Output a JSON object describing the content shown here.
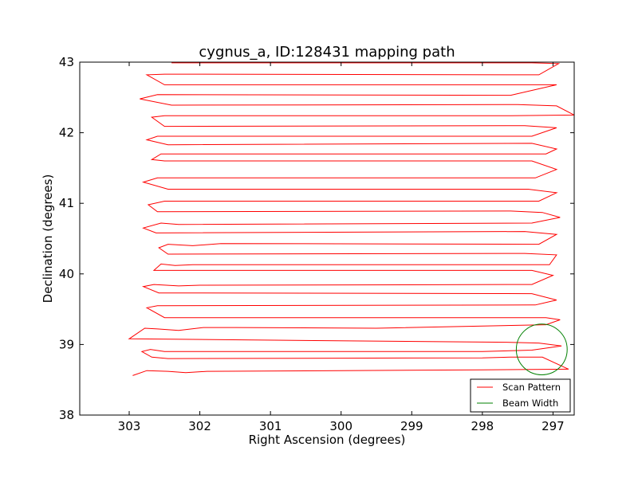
{
  "chart_data": {
    "type": "line",
    "title": "cygnus_a, ID:128431 mapping path",
    "xlabel": "Right Ascension (degrees)",
    "ylabel": "Declination (degrees)",
    "xlim": [
      303.7,
      296.7
    ],
    "ylim": [
      38.0,
      43.0
    ],
    "xticks": [
      303,
      302,
      301,
      300,
      299,
      298,
      297
    ],
    "yticks": [
      38,
      39,
      40,
      41,
      42,
      43
    ],
    "grid": false,
    "legend_position": "lower-right",
    "series": [
      {
        "name": "Scan Pattern",
        "color": "#ff0000",
        "kind": "path",
        "points": [
          [
            302.95,
            38.56
          ],
          [
            302.75,
            38.63
          ],
          [
            302.45,
            38.62
          ],
          [
            302.2,
            38.6
          ],
          [
            301.9,
            38.62
          ],
          [
            300.0,
            38.63
          ],
          [
            298.0,
            38.64
          ],
          [
            296.78,
            38.65
          ],
          [
            297.15,
            38.82
          ],
          [
            297.6,
            38.82
          ],
          [
            298.0,
            38.81
          ],
          [
            302.45,
            38.8
          ],
          [
            302.68,
            38.82
          ],
          [
            302.82,
            38.9
          ],
          [
            302.7,
            38.93
          ],
          [
            302.5,
            38.9
          ],
          [
            298.0,
            38.9
          ],
          [
            297.3,
            38.92
          ],
          [
            296.88,
            38.98
          ],
          [
            297.2,
            39.02
          ],
          [
            297.6,
            39.03
          ],
          [
            303.0,
            39.08
          ],
          [
            302.78,
            39.23
          ],
          [
            302.6,
            39.22
          ],
          [
            302.3,
            39.2
          ],
          [
            301.95,
            39.24
          ],
          [
            301.5,
            39.24
          ],
          [
            299.5,
            39.23
          ],
          [
            297.1,
            39.28
          ],
          [
            296.9,
            39.35
          ],
          [
            297.1,
            39.38
          ],
          [
            302.5,
            39.38
          ],
          [
            302.75,
            39.52
          ],
          [
            302.6,
            39.55
          ],
          [
            297.25,
            39.56
          ],
          [
            296.95,
            39.63
          ],
          [
            297.3,
            39.72
          ],
          [
            302.58,
            39.73
          ],
          [
            302.8,
            39.82
          ],
          [
            302.65,
            39.85
          ],
          [
            302.3,
            39.83
          ],
          [
            302.0,
            39.84
          ],
          [
            297.3,
            39.85
          ],
          [
            297.0,
            39.98
          ],
          [
            297.3,
            40.05
          ],
          [
            302.65,
            40.05
          ],
          [
            302.55,
            40.14
          ],
          [
            302.35,
            40.12
          ],
          [
            302.1,
            40.13
          ],
          [
            301.9,
            40.13
          ],
          [
            297.05,
            40.13
          ],
          [
            296.95,
            40.27
          ],
          [
            297.4,
            40.29
          ],
          [
            302.45,
            40.28
          ],
          [
            302.58,
            40.37
          ],
          [
            302.45,
            40.42
          ],
          [
            302.1,
            40.4
          ],
          [
            301.7,
            40.43
          ],
          [
            297.2,
            40.42
          ],
          [
            296.95,
            40.56
          ],
          [
            297.4,
            40.6
          ],
          [
            302.62,
            40.58
          ],
          [
            302.8,
            40.65
          ],
          [
            302.55,
            40.72
          ],
          [
            302.3,
            40.7
          ],
          [
            297.3,
            40.72
          ],
          [
            296.9,
            40.8
          ],
          [
            297.15,
            40.87
          ],
          [
            297.6,
            40.89
          ],
          [
            302.6,
            40.88
          ],
          [
            302.73,
            40.98
          ],
          [
            302.5,
            41.03
          ],
          [
            297.2,
            41.03
          ],
          [
            296.95,
            41.15
          ],
          [
            297.35,
            41.2
          ],
          [
            302.45,
            41.2
          ],
          [
            302.8,
            41.3
          ],
          [
            302.6,
            41.36
          ],
          [
            297.25,
            41.36
          ],
          [
            296.95,
            41.48
          ],
          [
            297.3,
            41.6
          ],
          [
            302.5,
            41.6
          ],
          [
            302.68,
            41.62
          ],
          [
            302.55,
            41.7
          ],
          [
            297.1,
            41.7
          ],
          [
            296.95,
            41.77
          ],
          [
            297.3,
            41.85
          ],
          [
            302.45,
            41.83
          ],
          [
            302.75,
            41.9
          ],
          [
            302.6,
            41.95
          ],
          [
            297.3,
            41.95
          ],
          [
            296.95,
            42.07
          ],
          [
            297.4,
            42.1
          ],
          [
            302.5,
            42.09
          ],
          [
            302.68,
            42.22
          ],
          [
            302.5,
            42.24
          ],
          [
            297.6,
            42.24
          ],
          [
            296.7,
            42.25
          ],
          [
            296.95,
            42.38
          ],
          [
            297.5,
            42.4
          ],
          [
            302.4,
            42.39
          ],
          [
            302.85,
            42.48
          ],
          [
            302.6,
            42.54
          ],
          [
            297.6,
            42.53
          ],
          [
            296.95,
            42.68
          ],
          [
            297.2,
            42.68
          ],
          [
            302.5,
            42.68
          ],
          [
            302.75,
            42.82
          ],
          [
            302.5,
            42.83
          ],
          [
            297.2,
            42.82
          ],
          [
            296.92,
            42.98
          ],
          [
            297.3,
            42.99
          ],
          [
            302.4,
            42.99
          ]
        ]
      },
      {
        "name": "Beam Width",
        "color": "#008000",
        "kind": "circle",
        "center": [
          297.16,
          38.93
        ],
        "radius_deg": 0.36
      }
    ]
  }
}
